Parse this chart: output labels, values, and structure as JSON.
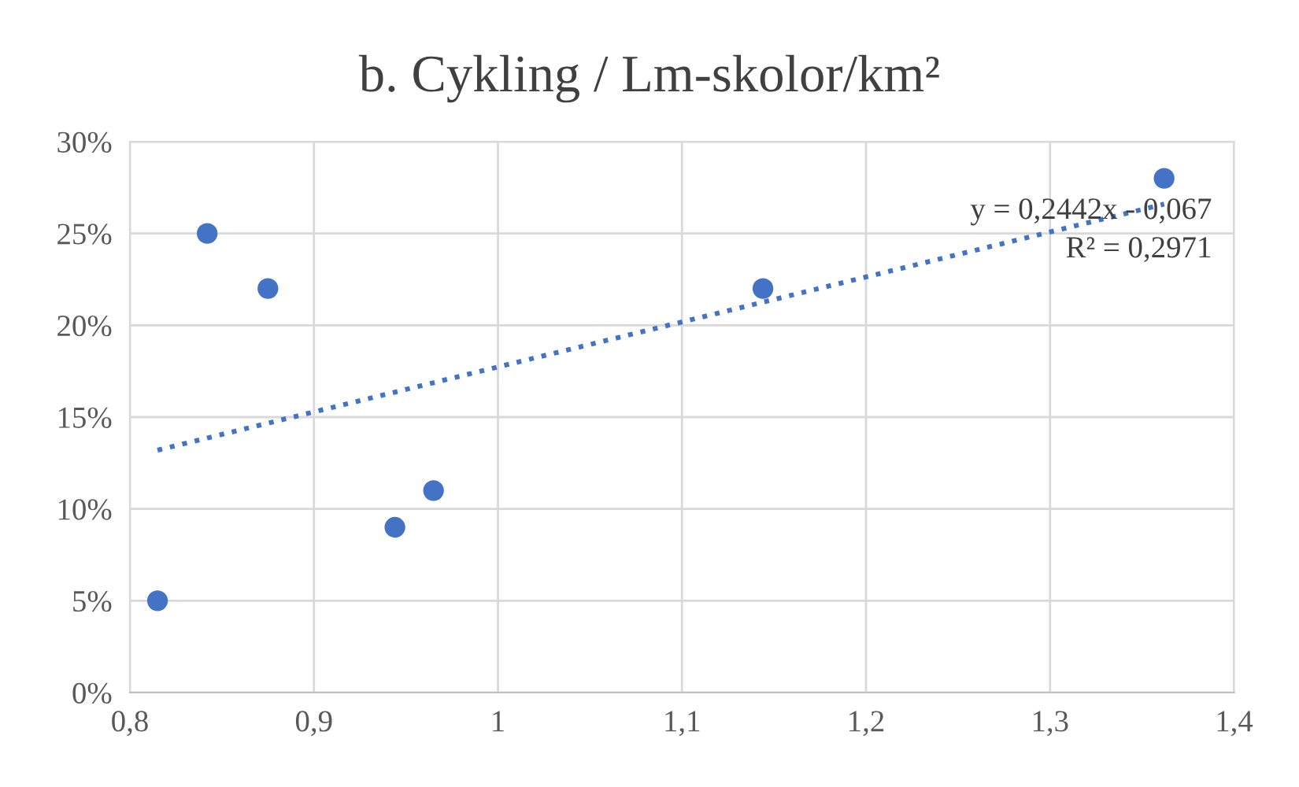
{
  "chart_data": {
    "type": "scatter",
    "title": "b. Cykling / Lm-skolor/km²",
    "series": [
      {
        "color": "#4472c4",
        "marker": "circle",
        "x": [
          0.815,
          0.842,
          0.875,
          0.944,
          0.965,
          1.144,
          1.362
        ],
        "values": [
          0.05,
          0.25,
          0.22,
          0.09,
          0.11,
          0.22,
          0.28
        ]
      },
      {
        "type": "line",
        "color": "#4472c4",
        "line_style": "dotted",
        "x": [
          0.815,
          1.362
        ],
        "values": [
          0.132,
          0.266
        ]
      }
    ],
    "annotations": [
      "y = 0,2442x - 0,067",
      "R² = 0,2971"
    ],
    "xlim": [
      0.8,
      1.4
    ],
    "xticks": [
      {
        "value": 0.8,
        "label": "0,8"
      },
      {
        "value": 0.9,
        "label": "0,9"
      },
      1,
      {
        "value": 1.1,
        "label": "1,1"
      },
      {
        "value": 1.2,
        "label": "1,2"
      },
      {
        "value": 1.3,
        "label": "1,3"
      },
      {
        "value": 1.4,
        "label": "1,4"
      }
    ],
    "ylim": [
      0,
      0.3
    ],
    "yticks": [
      {
        "value": 0,
        "label": "0%"
      },
      {
        "value": 0.05,
        "label": "5%"
      },
      {
        "value": 0.1,
        "label": "10%"
      },
      {
        "value": 0.15,
        "label": "15%"
      },
      {
        "value": 0.2,
        "label": "20%"
      },
      {
        "value": 0.25,
        "label": "25%"
      },
      {
        "value": 0.3,
        "label": "30%"
      }
    ],
    "grid": true
  }
}
